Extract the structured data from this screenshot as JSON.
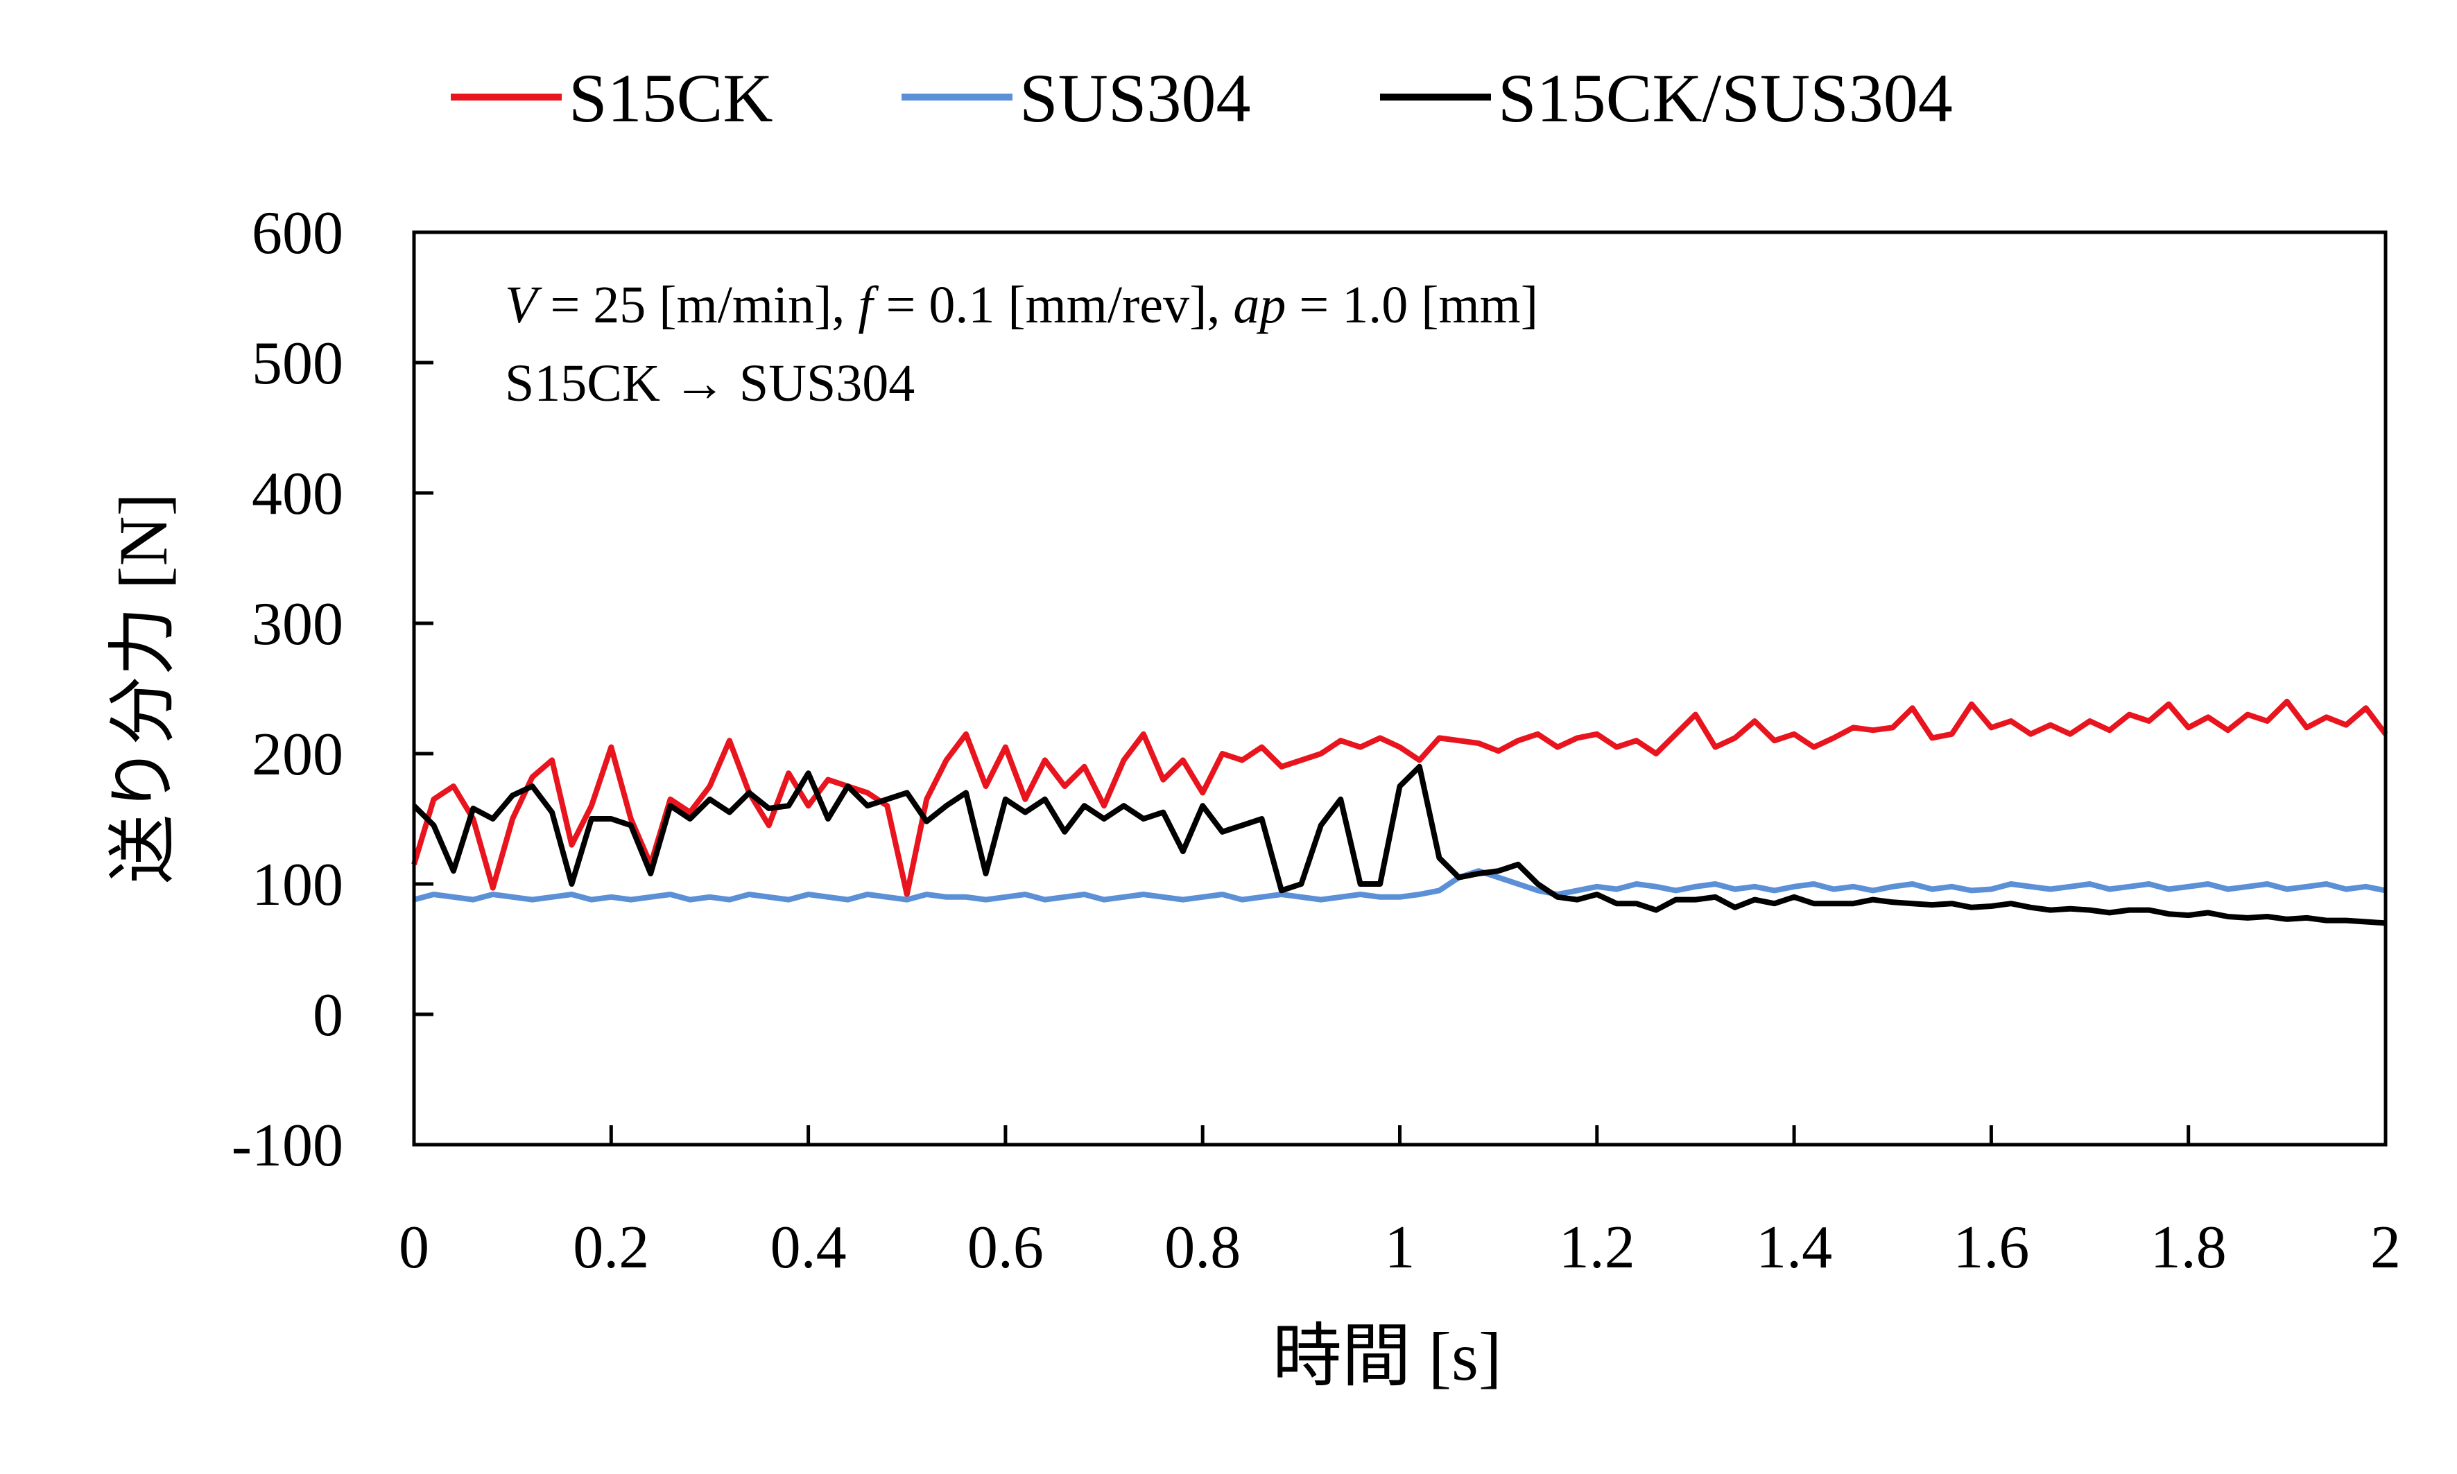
{
  "chart_data": {
    "type": "line",
    "title": "",
    "xlabel": "時間 [s]",
    "ylabel": "送り分力 [N]",
    "xlim": [
      0,
      2
    ],
    "ylim": [
      -100,
      600
    ],
    "xticks": [
      0,
      0.2,
      0.4,
      0.6,
      0.8,
      1,
      1.2,
      1.4,
      1.6,
      1.8,
      2
    ],
    "xtick_labels": [
      "0",
      "0.2",
      "0.4",
      "0.6",
      "0.8",
      "1",
      "1.2",
      "1.4",
      "1.6",
      "1.8",
      "2"
    ],
    "yticks": [
      -100,
      0,
      100,
      200,
      300,
      400,
      500,
      600
    ],
    "ytick_labels": [
      "-100",
      "0",
      "100",
      "200",
      "300",
      "400",
      "500",
      "600"
    ],
    "grid": false,
    "legend_position": "top",
    "annotations": {
      "line1": {
        "v_sym": "V",
        "v_val": " = 25 [m/min], ",
        "f_sym": "f",
        "f_val": " = 0.1 [mm/rev], ",
        "ap_sym": "ap",
        "ap_val": " = 1.0 [mm]"
      },
      "line2": "S15CK → SUS304"
    },
    "x": [
      0,
      0.02,
      0.04,
      0.06,
      0.08,
      0.1,
      0.12,
      0.14,
      0.16,
      0.18,
      0.2,
      0.22,
      0.24,
      0.26,
      0.28,
      0.3,
      0.32,
      0.34,
      0.36,
      0.38,
      0.4,
      0.42,
      0.44,
      0.46,
      0.48,
      0.5,
      0.52,
      0.54,
      0.56,
      0.58,
      0.6,
      0.62,
      0.64,
      0.66,
      0.68,
      0.7,
      0.72,
      0.74,
      0.76,
      0.78,
      0.8,
      0.82,
      0.84,
      0.86,
      0.88,
      0.9,
      0.92,
      0.94,
      0.96,
      0.98,
      1,
      1.02,
      1.04,
      1.06,
      1.08,
      1.1,
      1.12,
      1.14,
      1.16,
      1.18,
      1.2,
      1.22,
      1.24,
      1.26,
      1.28,
      1.3,
      1.32,
      1.34,
      1.36,
      1.38,
      1.4,
      1.42,
      1.44,
      1.46,
      1.48,
      1.5,
      1.52,
      1.54,
      1.56,
      1.58,
      1.6,
      1.62,
      1.64,
      1.66,
      1.68,
      1.7,
      1.72,
      1.74,
      1.76,
      1.78,
      1.8,
      1.82,
      1.84,
      1.86,
      1.88,
      1.9,
      1.92,
      1.94,
      1.96,
      1.98,
      2
    ],
    "series": [
      {
        "name": "S15CK",
        "color": "#e8141e",
        "values": [
          115,
          165,
          175,
          150,
          97,
          150,
          182,
          195,
          130,
          160,
          205,
          150,
          115,
          165,
          155,
          175,
          210,
          170,
          145,
          185,
          160,
          180,
          175,
          170,
          160,
          92,
          165,
          195,
          215,
          175,
          205,
          165,
          195,
          175,
          190,
          160,
          195,
          215,
          180,
          195,
          170,
          200,
          195,
          205,
          190,
          195,
          200,
          210,
          205,
          212,
          205,
          195,
          212,
          210,
          208,
          202,
          210,
          215,
          205,
          212,
          215,
          205,
          210,
          200,
          215,
          230,
          205,
          212,
          225,
          210,
          215,
          205,
          212,
          220,
          218,
          220,
          235,
          212,
          215,
          238,
          220,
          225,
          215,
          222,
          215,
          225,
          218,
          230,
          225,
          238,
          220,
          228,
          218,
          230,
          225,
          240,
          220,
          228,
          222,
          235,
          215
        ]
      },
      {
        "name": "SUS304",
        "color": "#5b8fd6",
        "values": [
          88,
          92,
          90,
          88,
          92,
          90,
          88,
          90,
          92,
          88,
          90,
          88,
          90,
          92,
          88,
          90,
          88,
          92,
          90,
          88,
          92,
          90,
          88,
          92,
          90,
          88,
          92,
          90,
          90,
          88,
          90,
          92,
          88,
          90,
          92,
          88,
          90,
          92,
          90,
          88,
          90,
          92,
          88,
          90,
          92,
          90,
          88,
          90,
          92,
          90,
          90,
          92,
          95,
          105,
          110,
          105,
          100,
          95,
          92,
          95,
          98,
          96,
          100,
          98,
          95,
          98,
          100,
          96,
          98,
          95,
          98,
          100,
          96,
          98,
          95,
          98,
          100,
          96,
          98,
          95,
          96,
          100,
          98,
          96,
          98,
          100,
          96,
          98,
          100,
          96,
          98,
          100,
          96,
          98,
          100,
          96,
          98,
          100,
          96,
          98,
          95
        ]
      },
      {
        "name": "S15CK/SUS304",
        "color": "#000000",
        "values": [
          160,
          145,
          110,
          158,
          150,
          168,
          175,
          155,
          100,
          150,
          150,
          145,
          108,
          160,
          150,
          165,
          155,
          170,
          158,
          160,
          185,
          150,
          175,
          160,
          165,
          170,
          148,
          160,
          170,
          108,
          165,
          155,
          165,
          140,
          160,
          150,
          160,
          150,
          155,
          125,
          160,
          140,
          145,
          150,
          95,
          100,
          145,
          165,
          100,
          100,
          175,
          190,
          120,
          105,
          108,
          110,
          115,
          100,
          90,
          88,
          92,
          85,
          85,
          80,
          88,
          88,
          90,
          82,
          88,
          85,
          90,
          85,
          85,
          85,
          88,
          86,
          85,
          84,
          85,
          82,
          83,
          85,
          82,
          80,
          81,
          80,
          78,
          80,
          80,
          77,
          76,
          78,
          75,
          74,
          75,
          73,
          74,
          72,
          72,
          71,
          70
        ]
      }
    ]
  }
}
